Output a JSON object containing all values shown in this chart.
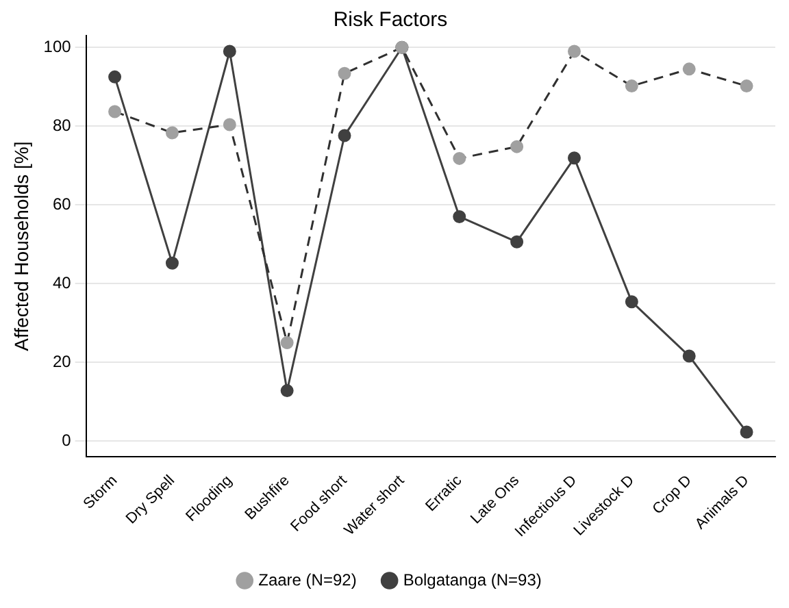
{
  "chart_data": {
    "type": "line",
    "title": "Risk Factors",
    "ylabel": "Affected Households [%]",
    "categories": [
      "Storm",
      "Dry Spell",
      "Flooding",
      "Bushfire",
      "Food short",
      "Water short",
      "Erratic",
      "Late Ons",
      "Infectious D",
      "Livestock D",
      "Crop D",
      "Animals D"
    ],
    "series": [
      {
        "name": "Bolgatanga (N=93)",
        "color": "#404040",
        "line_style": "solid",
        "values": [
          92.5,
          45.2,
          99,
          12.8,
          77.6,
          100,
          57,
          50.6,
          71.9,
          35.4,
          21.6,
          2.3
        ]
      },
      {
        "name": "Zaare (N=92)",
        "color": "#a0a0a0",
        "line_style": "dashed",
        "values": [
          83.7,
          78.3,
          80.4,
          25,
          93.4,
          100,
          71.8,
          74.8,
          99,
          90.2,
          94.5,
          90.2
        ]
      }
    ],
    "ylim": [
      -4,
      103
    ],
    "yticks": [
      0,
      20,
      40,
      60,
      80,
      100
    ],
    "grid": "y",
    "legend": "bottom",
    "marker": "circle"
  }
}
